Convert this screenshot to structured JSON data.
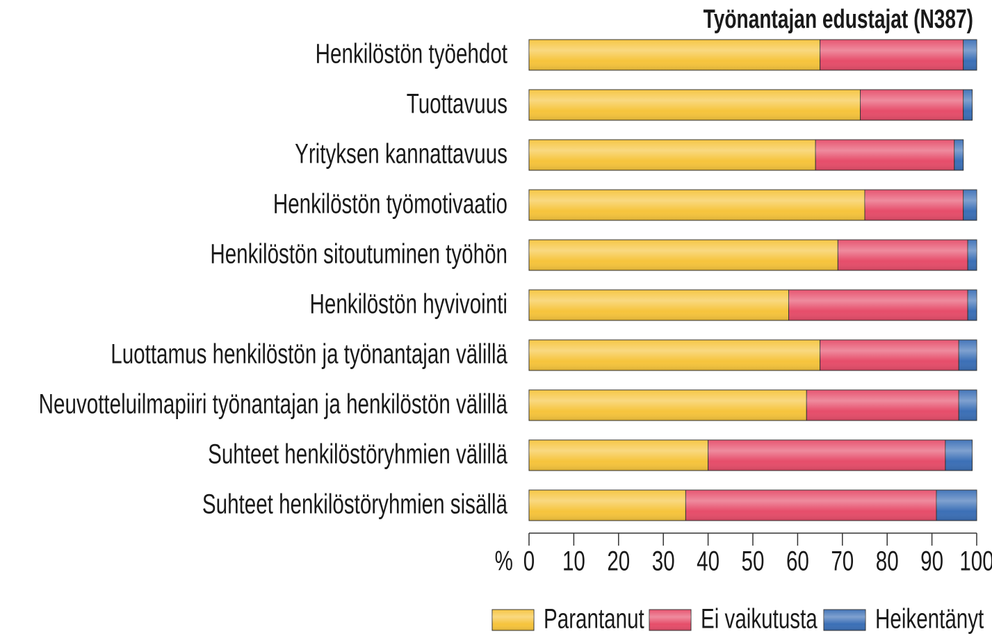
{
  "chart_data": {
    "type": "stacked-barh",
    "title": "Työnantajan edustajat (N387)",
    "x_label": "%",
    "categories": [
      "Henkilöstön työehdot",
      "Tuottavuus",
      "Yrityksen kannattavuus",
      "Henkilöstön työmotivaatio",
      "Henkilöstön sitoutuminen työhön",
      "Henkilöstön hyvivointi",
      "Luottamus henkilöstön ja työnantajan välillä",
      "Neuvotteluilmapiiri työnantajan ja henkilöstön välillä",
      "Suhteet henkilöstöryhmien välillä",
      "Suhteet henkilöstöryhmien sisällä"
    ],
    "series": [
      {
        "name": "Parantanut",
        "color": "#f6c43c",
        "values": [
          65,
          74,
          64,
          75,
          69,
          58,
          65,
          62,
          40,
          35
        ]
      },
      {
        "name": "Ei vaikutusta",
        "color": "#e64d6a",
        "values": [
          32,
          23,
          31,
          22,
          29,
          40,
          31,
          34,
          53,
          56
        ]
      },
      {
        "name": "Heikentänyt",
        "color": "#3b6fb6",
        "values": [
          3,
          2,
          2,
          3,
          2,
          2,
          4,
          4,
          6,
          9
        ]
      }
    ],
    "xlim": [
      0,
      100
    ],
    "xticks": [
      0,
      10,
      20,
      30,
      40,
      50,
      60,
      70,
      80,
      90,
      100
    ],
    "legend": "bottom"
  }
}
